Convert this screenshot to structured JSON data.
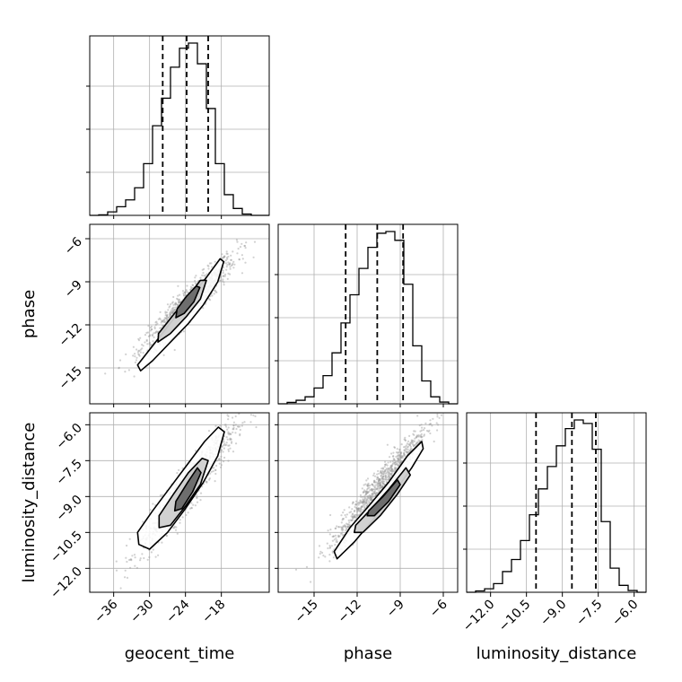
{
  "chart_data": {
    "type": "corner",
    "parameters": [
      "geocent_time",
      "phase",
      "luminosity_distance"
    ],
    "axes": {
      "geocent_time": {
        "label": "geocent_time",
        "range": [
          -40,
          -10
        ],
        "ticks": [
          -36,
          -30,
          -24,
          -18
        ],
        "tick_labels": [
          "−36",
          "−30",
          "−24",
          "−18"
        ]
      },
      "phase": {
        "label": "phase",
        "range": [
          -17.5,
          -5.0
        ],
        "ticks": [
          -15,
          -12,
          -9,
          -6
        ],
        "tick_labels": [
          "−15",
          "−12",
          "−9",
          "−6"
        ]
      },
      "luminosity_distance": {
        "label": "luminosity_distance",
        "range": [
          -13.0,
          -5.5
        ],
        "ticks": [
          -12.0,
          -10.5,
          -9.0,
          -7.5,
          -6.0
        ],
        "tick_labels": [
          "−12.0",
          "−10.5",
          "−9.0",
          "−7.5",
          "−6.0"
        ]
      }
    },
    "histograms": {
      "geocent_time": {
        "bin_edges": [
          -40.0,
          -38.5,
          -37.0,
          -35.5,
          -34.0,
          -32.5,
          -31.0,
          -29.5,
          -28.0,
          -26.5,
          -25.0,
          -23.5,
          -22.0,
          -20.5,
          -19.0,
          -17.5,
          -16.0,
          -14.5,
          -13.0,
          -11.5,
          -10.0
        ],
        "counts": [
          0,
          0.3,
          2,
          5,
          9,
          16,
          30,
          52,
          68,
          86,
          97,
          100,
          88,
          62,
          30,
          12,
          4,
          0.8,
          0,
          0
        ],
        "quantiles": [
          -27.8,
          -23.8,
          -20.2
        ]
      },
      "phase": {
        "bin_edges": [
          -17.5,
          -16.875,
          -16.25,
          -15.625,
          -15.0,
          -14.375,
          -13.75,
          -13.125,
          -12.5,
          -11.875,
          -11.25,
          -10.625,
          -10.0,
          -9.375,
          -8.75,
          -8.125,
          -7.5,
          -6.875,
          -6.25,
          -5.625,
          -5.0
        ],
        "counts": [
          0,
          0.8,
          2,
          4,
          9,
          16,
          29,
          46,
          62,
          77,
          89,
          97,
          98,
          93,
          68,
          33,
          13,
          4,
          1,
          0
        ],
        "quantiles": [
          -12.8,
          -10.6,
          -8.8
        ]
      },
      "luminosity_distance": {
        "bin_edges": [
          -13.0,
          -12.625,
          -12.25,
          -11.875,
          -11.5,
          -11.125,
          -10.75,
          -10.375,
          -10.0,
          -9.625,
          -9.25,
          -8.875,
          -8.5,
          -8.125,
          -7.75,
          -7.375,
          -7.0,
          -6.625,
          -6.25,
          -5.875,
          -5.5
        ],
        "counts": [
          0,
          0.8,
          2,
          5,
          12,
          19,
          30,
          45,
          60,
          73,
          85,
          95,
          100,
          98,
          83,
          41,
          14,
          4,
          1,
          0
        ],
        "quantiles": [
          -10.1,
          -8.6,
          -7.6
        ]
      }
    },
    "joint": [
      {
        "x": "geocent_time",
        "y": "phase",
        "center": [
          -23.5,
          -10.5
        ],
        "scatter_spread": [
          4.0,
          1.7
        ],
        "correlation": 0.94,
        "contours": [
          [
            [
              -32.0,
              -14.8
            ],
            [
              -29.0,
              -13.2
            ],
            [
              -26.0,
              -11.6
            ],
            [
              -23.0,
              -10.0
            ],
            [
              -20.5,
              -8.7
            ],
            [
              -18.2,
              -7.4
            ],
            [
              -17.6,
              -7.6
            ],
            [
              -18.6,
              -9.0
            ],
            [
              -21.0,
              -10.6
            ],
            [
              -23.5,
              -11.9
            ],
            [
              -26.5,
              -13.2
            ],
            [
              -29.5,
              -14.5
            ],
            [
              -31.5,
              -15.2
            ]
          ],
          [
            [
              -28.5,
              -12.6
            ],
            [
              -26.0,
              -11.3
            ],
            [
              -23.5,
              -10.0
            ],
            [
              -21.5,
              -8.9
            ],
            [
              -20.5,
              -8.9
            ],
            [
              -21.5,
              -10.2
            ],
            [
              -23.8,
              -11.4
            ],
            [
              -26.5,
              -12.6
            ],
            [
              -28.6,
              -13.2
            ]
          ],
          [
            [
              -25.4,
              -10.9
            ],
            [
              -23.8,
              -10.0
            ],
            [
              -22.2,
              -9.3
            ],
            [
              -21.6,
              -9.4
            ],
            [
              -22.6,
              -10.4
            ],
            [
              -24.2,
              -11.2
            ],
            [
              -25.6,
              -11.5
            ]
          ]
        ]
      },
      {
        "x": "geocent_time",
        "y": "luminosity_distance",
        "center": [
          -23.5,
          -8.6
        ],
        "scatter_spread": [
          4.0,
          1.3
        ],
        "correlation": 0.94,
        "contours": [
          [
            [
              -32.0,
              -10.5
            ],
            [
              -29.5,
              -9.6
            ],
            [
              -26.5,
              -8.6
            ],
            [
              -23.5,
              -7.6
            ],
            [
              -20.8,
              -6.7
            ],
            [
              -18.5,
              -6.1
            ],
            [
              -17.5,
              -6.3
            ],
            [
              -18.6,
              -7.3
            ],
            [
              -21.0,
              -8.4
            ],
            [
              -24.0,
              -9.5
            ],
            [
              -27.0,
              -10.5
            ],
            [
              -30.0,
              -11.2
            ],
            [
              -31.8,
              -11.0
            ]
          ],
          [
            [
              -28.4,
              -9.8
            ],
            [
              -26.0,
              -8.9
            ],
            [
              -23.5,
              -8.0
            ],
            [
              -21.2,
              -7.4
            ],
            [
              -20.2,
              -7.5
            ],
            [
              -21.5,
              -8.5
            ],
            [
              -24.0,
              -9.4
            ],
            [
              -26.5,
              -10.2
            ],
            [
              -28.4,
              -10.3
            ]
          ],
          [
            [
              -25.6,
              -9.2
            ],
            [
              -23.6,
              -8.4
            ],
            [
              -22.0,
              -7.8
            ],
            [
              -21.4,
              -8.0
            ],
            [
              -22.8,
              -8.8
            ],
            [
              -24.6,
              -9.5
            ],
            [
              -25.8,
              -9.6
            ]
          ]
        ]
      },
      {
        "x": "phase",
        "y": "luminosity_distance",
        "center": [
          -10.5,
          -8.6
        ],
        "scatter_spread": [
          1.7,
          1.3
        ],
        "correlation": 0.96,
        "contours": [
          [
            [
              -13.6,
              -11.3
            ],
            [
              -12.5,
              -10.3
            ],
            [
              -11.2,
              -9.4
            ],
            [
              -9.8,
              -8.4
            ],
            [
              -8.5,
              -7.3
            ],
            [
              -7.5,
              -6.7
            ],
            [
              -7.4,
              -7.0
            ],
            [
              -8.2,
              -7.8
            ],
            [
              -9.5,
              -8.9
            ],
            [
              -10.8,
              -9.9
            ],
            [
              -12.2,
              -10.9
            ],
            [
              -13.4,
              -11.6
            ]
          ],
          [
            [
              -12.1,
              -10.2
            ],
            [
              -11.0,
              -9.5
            ],
            [
              -9.8,
              -8.7
            ],
            [
              -8.6,
              -7.8
            ],
            [
              -8.3,
              -8.1
            ],
            [
              -9.2,
              -8.9
            ],
            [
              -10.4,
              -9.8
            ],
            [
              -11.6,
              -10.5
            ],
            [
              -12.2,
              -10.5
            ]
          ],
          [
            [
              -11.2,
              -9.6
            ],
            [
              -10.2,
              -9.0
            ],
            [
              -9.2,
              -8.3
            ],
            [
              -9.0,
              -8.5
            ],
            [
              -9.8,
              -9.2
            ],
            [
              -10.8,
              -9.8
            ],
            [
              -11.3,
              -9.8
            ]
          ]
        ]
      }
    ],
    "grid": true,
    "legend": "none"
  }
}
